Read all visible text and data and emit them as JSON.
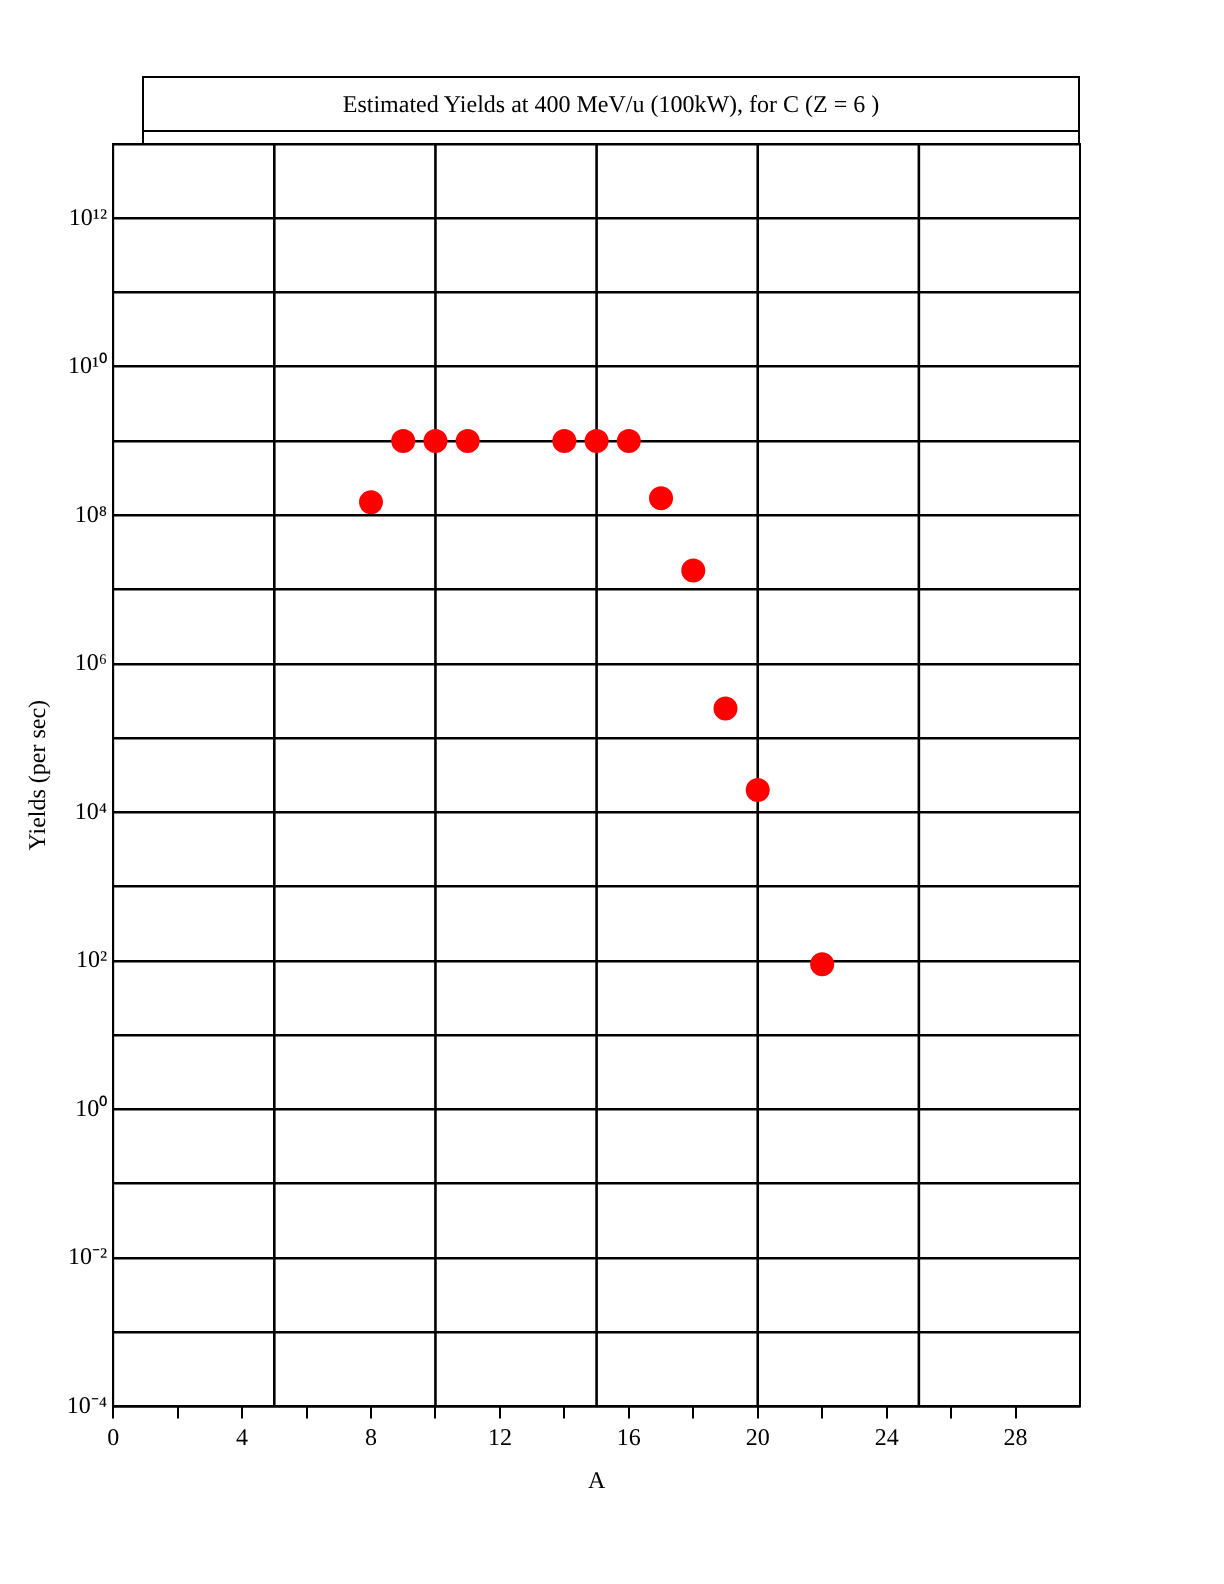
{
  "chart_data": {
    "type": "scatter",
    "title": "Estimated Yields at 400 MeV/u (100kW), for C (Z = 6 )",
    "xlabel": "A",
    "ylabel": "Yields (per sec)",
    "x": [
      8,
      9,
      10,
      11,
      14,
      15,
      16,
      17,
      18,
      19,
      20,
      22
    ],
    "series": [
      {
        "color": "#ff0000",
        "values": [
          150000000.0,
          1000000000.0,
          1000000000.0,
          1000000000.0,
          1000000000.0,
          1000000000.0,
          1000000000.0,
          170000000.0,
          18000000.0,
          250000.0,
          20000.0,
          90
        ]
      }
    ],
    "xlim": [
      0,
      30
    ],
    "xticks": [
      0,
      {
        "value": 2,
        "label": null
      },
      4,
      {
        "value": 6,
        "label": null
      },
      8,
      {
        "value": 10,
        "label": null
      },
      12,
      {
        "value": 14,
        "label": null
      },
      16,
      {
        "value": 18,
        "label": null
      },
      20,
      {
        "value": 22,
        "label": null
      },
      24,
      {
        "value": 26,
        "label": null
      },
      28
    ],
    "ylim": [
      0.0001,
      10000000000000.0
    ],
    "yticks": [
      {
        "value": 0.0001,
        "label": "10⁻⁴"
      },
      {
        "value": 0.001,
        "label": null
      },
      {
        "value": 0.01,
        "label": "10⁻²"
      },
      {
        "value": 0.1,
        "label": null
      },
      {
        "value": 1,
        "label": "10⁰"
      },
      {
        "value": 10,
        "label": null
      },
      {
        "value": 100,
        "label": "10²"
      },
      {
        "value": 1000,
        "label": null
      },
      {
        "value": 10000.0,
        "label": "10⁴"
      },
      {
        "value": 100000.0,
        "label": null
      },
      {
        "value": 1000000.0,
        "label": "10⁶"
      },
      {
        "value": 10000000.0,
        "label": null
      },
      {
        "value": 100000000.0,
        "label": "10⁸"
      },
      {
        "value": 1000000000.0,
        "label": null
      },
      {
        "value": 10000000000.0,
        "label": "10¹⁰"
      },
      {
        "value": 100000000000.0,
        "label": null
      },
      {
        "value": 1000000000000.0,
        "label": "10¹²"
      },
      {
        "value": 10000000000000.0,
        "label": null
      }
    ],
    "ref_lines": [
      {
        "axis": "x",
        "value": 5,
        "color": "#000000"
      },
      {
        "axis": "x",
        "value": 10,
        "color": "#000000"
      },
      {
        "axis": "x",
        "value": 15,
        "color": "#000000"
      },
      {
        "axis": "x",
        "value": 20,
        "color": "#000000"
      },
      {
        "axis": "x",
        "value": 25,
        "color": "#000000"
      }
    ],
    "log": "y",
    "grid": "y",
    "legend": false,
    "marker": "circle"
  }
}
